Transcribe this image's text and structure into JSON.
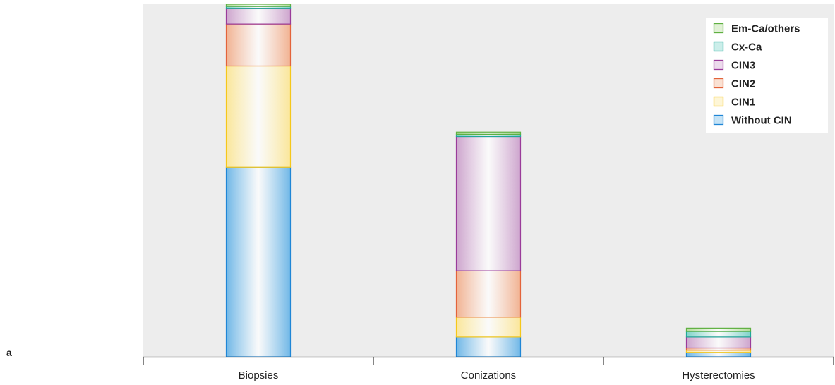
{
  "panel_label": "a",
  "colors": {
    "plot_background": "#ededed",
    "axis": "#333333"
  },
  "chart_data": {
    "type": "bar",
    "stacked": true,
    "title": "",
    "xlabel": "",
    "ylabel": "",
    "y_axis_shown": false,
    "ylim": [
      0,
      160
    ],
    "grid": false,
    "legend_position": "top-right",
    "categories": [
      "Biopsies",
      "Conizations",
      "Hysterectomies"
    ],
    "series": [
      {
        "name": "Without CIN",
        "values": [
          86,
          9,
          2
        ],
        "color": "#5aaee6",
        "edge": "#1f86d6"
      },
      {
        "name": "CIN1",
        "values": [
          46,
          9,
          1
        ],
        "color": "#fde58c",
        "edge": "#f5c71a"
      },
      {
        "name": "CIN2",
        "values": [
          19,
          21,
          1
        ],
        "color": "#f2a882",
        "edge": "#e3633a"
      },
      {
        "name": "CIN3",
        "values": [
          7,
          61,
          5
        ],
        "color": "#c898c8",
        "edge": "#9a3b9a"
      },
      {
        "name": "Cx-Ca",
        "values": [
          1,
          1,
          2.5
        ],
        "color": "#6ccfc3",
        "edge": "#1fa898"
      },
      {
        "name": "Em-Ca/others",
        "values": [
          1,
          1,
          1.5
        ],
        "color": "#a8d88a",
        "edge": "#5fb041"
      }
    ]
  }
}
